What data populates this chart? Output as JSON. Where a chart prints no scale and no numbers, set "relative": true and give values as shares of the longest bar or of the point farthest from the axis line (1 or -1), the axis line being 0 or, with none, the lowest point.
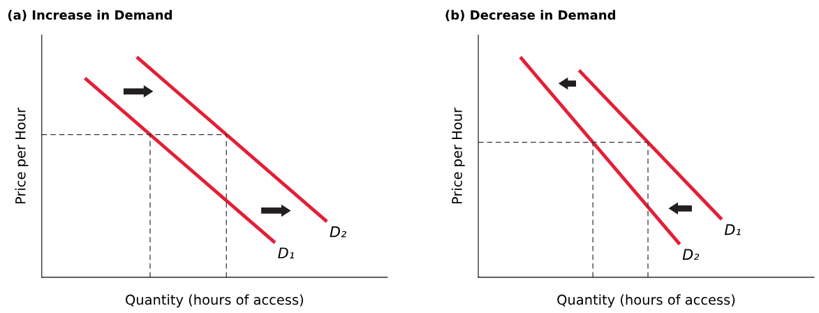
{
  "chart_data": [
    {
      "type": "line",
      "title": "(a) Increase in Demand",
      "xlabel": "Quantity (hours of access)",
      "ylabel": "Price per Hour",
      "relative": true,
      "legend": false,
      "marker": "none",
      "categories": [
        null,
        null,
        null,
        null,
        null,
        null,
        null,
        null,
        null,
        null,
        null,
        null,
        null,
        null,
        null,
        null,
        null,
        null,
        null,
        null,
        null,
        null,
        null,
        null,
        null,
        null,
        null,
        null,
        null,
        null,
        null,
        null,
        null,
        null,
        null,
        null,
        null,
        null,
        null,
        null,
        null
      ],
      "series": [
        {
          "name": "D₁",
          "color": "#e31f36",
          "values": [
            null,
            null,
            null,
            null,
            null,
            0.904,
            null,
            null,
            null,
            null,
            null,
            null,
            null,
            null,
            null,
            null,
            null,
            null,
            null,
            null,
            null,
            null,
            null,
            null,
            null,
            null,
            null,
            0.157,
            null,
            null,
            null,
            null,
            null,
            null,
            null,
            null,
            null,
            null,
            null,
            null,
            null
          ]
        },
        {
          "name": "D₂",
          "color": "#e31f36",
          "values": [
            null,
            null,
            null,
            null,
            null,
            null,
            null,
            null,
            null,
            null,
            null,
            1,
            null,
            null,
            null,
            null,
            null,
            null,
            null,
            null,
            null,
            null,
            null,
            null,
            null,
            null,
            null,
            null,
            null,
            null,
            null,
            null,
            null,
            0.253,
            null,
            null,
            null,
            null,
            null,
            null,
            null
          ]
        }
      ],
      "ref_lines": [
        {
          "axis": "y",
          "value": 0.648,
          "color": "#333333",
          "line_style": "dashed"
        }
      ]
    },
    {
      "type": "line",
      "title": "(b) Decrease in Demand",
      "xlabel": "Quantity (hours of access)",
      "ylabel": "Price per Hour",
      "relative": true,
      "legend": false,
      "marker": "none",
      "categories": [
        null,
        null,
        null,
        null,
        null,
        null,
        null,
        null,
        null,
        null,
        null,
        null,
        null,
        null,
        null,
        null,
        null,
        null,
        null,
        null,
        null,
        null,
        null,
        null,
        null,
        null,
        null,
        null,
        null,
        null,
        null,
        null,
        null,
        null,
        null,
        null,
        null,
        null,
        null,
        null,
        null
      ],
      "series": [
        {
          "name": "D₁",
          "color": "#e31f36",
          "values": [
            null,
            null,
            null,
            null,
            null,
            null,
            null,
            null,
            null,
            null,
            null,
            null,
            0.94,
            null,
            null,
            null,
            null,
            null,
            null,
            null,
            null,
            null,
            null,
            null,
            null,
            null,
            null,
            null,
            null,
            0.263,
            null,
            null,
            null,
            null,
            null,
            null,
            null,
            null,
            null,
            null,
            null
          ]
        },
        {
          "name": "D₂",
          "color": "#e31f36",
          "values": [
            null,
            null,
            null,
            null,
            null,
            1,
            null,
            null,
            null,
            null,
            null,
            null,
            null,
            null,
            null,
            null,
            null,
            null,
            null,
            null,
            null,
            null,
            null,
            null,
            0.15,
            null,
            null,
            null,
            null,
            null,
            null,
            null,
            null,
            null,
            null,
            null,
            null,
            null,
            null,
            null,
            null
          ]
        }
      ],
      "ref_lines": [
        {
          "axis": "y",
          "value": 0.613,
          "color": "#333333",
          "line_style": "dashed"
        }
      ]
    }
  ]
}
